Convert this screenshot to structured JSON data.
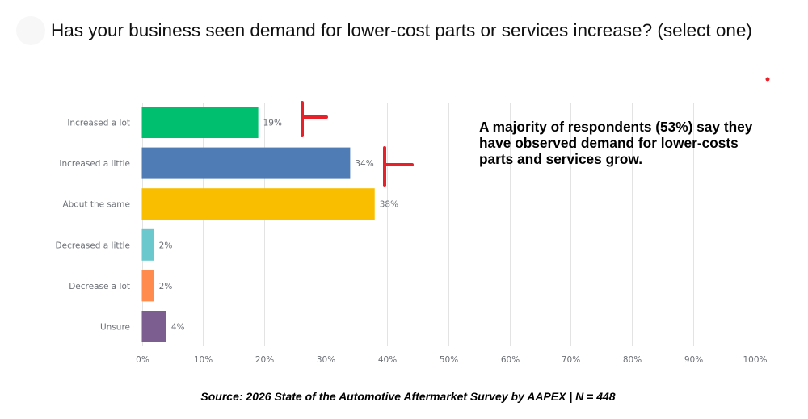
{
  "title": "Has your business seen demand for lower-cost parts or services increase? (select one)",
  "annotation": "A majority of respondents (53%) say they have observed demand for lower-costs parts and services grow.",
  "source": "Source: 2026 State of the Automotive Aftermarket Survey by AAPEX  | N = 448",
  "chart_data": {
    "type": "bar",
    "orientation": "horizontal",
    "title": "Has your business seen demand for lower-cost parts or services increase? (select one)",
    "xlabel": "",
    "ylabel": "",
    "xlim": [
      0,
      100
    ],
    "grid": true,
    "categories": [
      "Increased a lot",
      "Increased a little",
      "About the same",
      "Decreased a little",
      "Decrease a lot",
      "Unsure"
    ],
    "values": [
      19,
      34,
      38,
      2,
      2,
      4
    ],
    "value_labels": [
      "19%",
      "34%",
      "38%",
      "2%",
      "2%",
      "4%"
    ],
    "colors": [
      "#00bf6f",
      "#507cb6",
      "#f9be00",
      "#6bc8cd",
      "#ff8b4f",
      "#7d5e90"
    ],
    "x_ticks": [
      0,
      10,
      20,
      30,
      40,
      50,
      60,
      70,
      80,
      90,
      100
    ],
    "x_tick_labels": [
      "0%",
      "10%",
      "20%",
      "30%",
      "40%",
      "50%",
      "60%",
      "70%",
      "80%",
      "90%",
      "100%"
    ],
    "annotations": [
      "A majority of respondents (53%) say they have observed demand for lower-costs parts and services grow."
    ],
    "highlight_markers": {
      "color": "#e8202a",
      "marked_categories": [
        "Increased a lot",
        "Increased a little"
      ]
    }
  }
}
